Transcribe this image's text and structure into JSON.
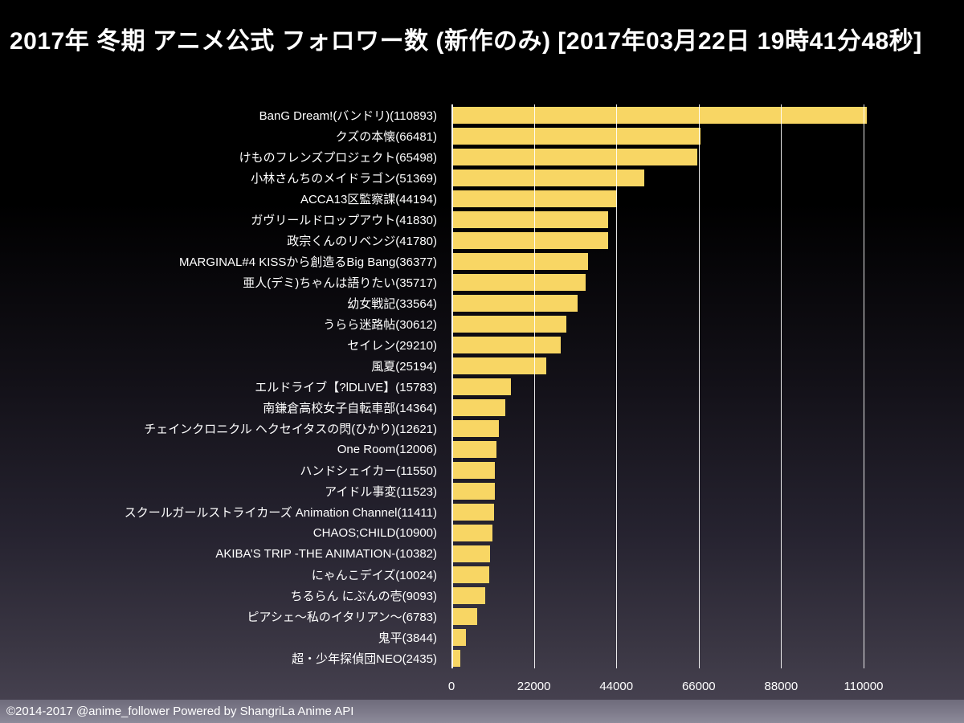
{
  "title": "2017年 冬期 アニメ公式 フォロワー数 (新作のみ) [2017年03月22日 19時41分48秒]",
  "footer": "©2014-2017 @anime_follower Powered by ShangriLa Anime API",
  "colors": {
    "bar": "#F8D664",
    "background_top": "#000000",
    "background_bottom": "#4A4554",
    "text": "#FFFFFF",
    "gridline": "#FFFFFF"
  },
  "chart_data": {
    "type": "bar",
    "orientation": "horizontal",
    "title": "2017年 冬期 アニメ公式 フォロワー数 (新作のみ) [2017年03月22日 19時41分48秒]",
    "xlabel": "",
    "ylabel": "",
    "xlim": [
      0,
      110000
    ],
    "xticks": [
      0,
      22000,
      44000,
      66000,
      88000,
      110000
    ],
    "xtick_labels": [
      "0",
      "22000",
      "44000",
      "66000",
      "88000",
      "110000"
    ],
    "grid": true,
    "legend": "none",
    "categories": [
      "BanG Dream!(バンドリ)(110893)",
      "クズの本懐(66481)",
      "けものフレンズプロジェクト(65498)",
      "小林さんちのメイドラゴン(51369)",
      "ACCA13区監察課(44194)",
      "ガヴリールドロップアウト(41830)",
      "政宗くんのリベンジ(41780)",
      "MARGINAL#4 KISSから創造るBig Bang(36377)",
      "亜人(デミ)ちゃんは語りたい(35717)",
      "幼女戦記(33564)",
      "うらら迷路帖(30612)",
      "セイレン(29210)",
      "風夏(25194)",
      "エルドライブ【?lDLIVE】(15783)",
      "南鎌倉高校女子自転車部(14364)",
      "チェインクロニクル ヘクセイタスの閃(ひかり)(12621)",
      "One Room(12006)",
      "ハンドシェイカー(11550)",
      "アイドル事変(11523)",
      "スクールガールストライカーズ Animation Channel(11411)",
      "CHAOS;CHILD(10900)",
      "AKIBA’S TRIP -THE ANIMATION-(10382)",
      "にゃんこデイズ(10024)",
      "ちるらん にぶんの壱(9093)",
      "ピアシェ〜私のイタリアン〜(6783)",
      "鬼平(3844)",
      "超・少年探偵団NEO(2435)"
    ],
    "values": [
      110893,
      66481,
      65498,
      51369,
      44194,
      41830,
      41780,
      36377,
      35717,
      33564,
      30612,
      29210,
      25194,
      15783,
      14364,
      12621,
      12006,
      11550,
      11523,
      11411,
      10900,
      10382,
      10024,
      9093,
      6783,
      3844,
      2435
    ]
  }
}
